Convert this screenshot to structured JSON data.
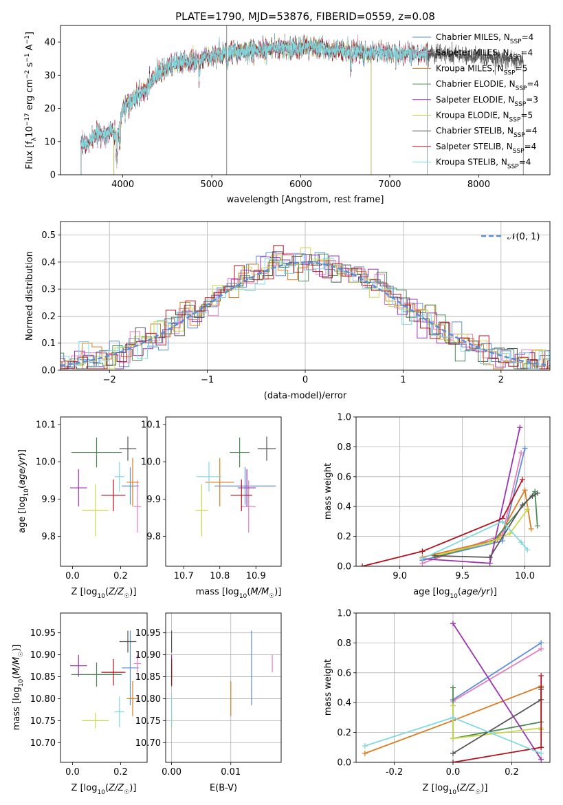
{
  "chart_data": [
    {
      "id": "spectrum",
      "type": "line",
      "title": "PLATE=1790, MJD=53876, FIBERID=0559, z=0.08",
      "xlabel": "wavelength [Angstrom, rest frame]",
      "ylabel": "Flux [f_λ 10^-17 erg cm^-2 s^-1 A^-1]",
      "xlim": [
        3300,
        8800
      ],
      "ylim": [
        0,
        45
      ],
      "xticks": [
        4000,
        5000,
        6000,
        7000,
        8000
      ],
      "yticks": [
        0,
        10,
        20,
        30,
        40
      ],
      "grid": false,
      "legend_placement": "top-right",
      "spectrum_anchors": {
        "x": [
          3530,
          3600,
          3700,
          3800,
          3900,
          3950,
          4000,
          4100,
          4200,
          4300,
          4400,
          4500,
          4600,
          4700,
          4800,
          4900,
          5000,
          5200,
          5500,
          5800,
          6100,
          6400,
          6700,
          7000,
          7300,
          7600,
          8000,
          8300,
          8500
        ],
        "y": [
          10,
          9,
          12,
          12.5,
          13,
          11,
          20,
          22,
          24.5,
          27,
          30.5,
          32,
          33.5,
          34.5,
          34,
          35.5,
          36,
          37,
          37.5,
          38,
          38.5,
          37.5,
          37,
          36.5,
          36.5,
          36.5,
          35.5,
          35,
          34.5
        ]
      },
      "series": [
        {
          "name": "Chabrier MILES, N_SSP=4",
          "color": "#5b8ed6",
          "range": [
            3530,
            7420
          ]
        },
        {
          "name": "Salpeter MILES, N_SSP=4",
          "color": "#e57cbf",
          "range": [
            3530,
            7420
          ]
        },
        {
          "name": "Kroupa MILES, N_SSP=5",
          "color": "#dd7a1f",
          "range": [
            3530,
            7420
          ]
        },
        {
          "name": "Chabrier ELODIE, N_SSP=4",
          "color": "#4d8b56",
          "range": [
            3900,
            6790
          ]
        },
        {
          "name": "Salpeter ELODIE, N_SSP=3",
          "color": "#9b33b0",
          "range": [
            3900,
            6790
          ]
        },
        {
          "name": "Kroupa ELODIE, N_SSP=5",
          "color": "#c9d84a",
          "range": [
            3900,
            6790
          ]
        },
        {
          "name": "Chabrier STELIB, N_SSP=4",
          "color": "#555555",
          "range": [
            3530,
            8500
          ]
        },
        {
          "name": "Salpeter STELIB, N_SSP=4",
          "color": "#b3111c",
          "range": [
            3530,
            7420
          ]
        },
        {
          "name": "Kroupa STELIB, N_SSP=4",
          "color": "#7fd8de",
          "range": [
            3530,
            7420
          ]
        }
      ],
      "legend": {
        "base": [
          "Chabrier MILES, N",
          "Salpeter MILES, N",
          "Kroupa MILES, N",
          "Chabrier ELODIE, N",
          "Salpeter ELODIE, N",
          "Kroupa ELODIE, N",
          "Chabrier STELIB, N",
          "Salpeter STELIB, N",
          "Kroupa STELIB, N"
        ],
        "sub": "SSP",
        "counts": [
          "=4",
          "=4",
          "=5",
          "=4",
          "=3",
          "=5",
          "=4",
          "=4",
          "=4"
        ]
      }
    },
    {
      "id": "residuals",
      "type": "histogram",
      "xlabel": "(data-model)/error",
      "ylabel": "Normed distribution",
      "xlim": [
        -2.5,
        2.5
      ],
      "ylim": [
        0,
        0.55
      ],
      "xticks": [
        -2,
        -1,
        0,
        1,
        2
      ],
      "yticks": [
        0.0,
        0.1,
        0.2,
        0.3,
        0.4,
        0.5
      ],
      "grid": true,
      "legend": {
        "label": "N(0, 1)",
        "placement": "top-right"
      },
      "bin_width": 0.1,
      "curve": "normal pdf, mean 0, sigma 1"
    },
    {
      "id": "age-Z",
      "type": "errorbar",
      "xlabel": "Z [log10(Z/Z☉)]",
      "ylabel": "age [log10(age/yr)]",
      "xlim": [
        -0.05,
        0.31
      ],
      "ylim": [
        9.72,
        10.12
      ],
      "xticks": [
        0.0,
        0.2
      ],
      "yticks": [
        9.8,
        9.9,
        10.0,
        10.1
      ],
      "grid": false
    },
    {
      "id": "age-mass",
      "type": "errorbar",
      "xlabel": "mass [log10(M/M☉)]",
      "ylabel": "",
      "xlim": [
        10.65,
        10.97
      ],
      "ylim": [
        9.72,
        10.12
      ],
      "xticks": [
        10.7,
        10.8,
        10.9
      ],
      "yticks": [
        9.8,
        9.9,
        10.0,
        10.1
      ],
      "grid": false
    },
    {
      "id": "weight-age",
      "type": "line",
      "xlabel": "age [log10(age/yr)]",
      "ylabel": "mass weight",
      "xlim": [
        8.65,
        10.2
      ],
      "ylim": [
        0,
        1
      ],
      "xticks": [
        9.0,
        9.5,
        10.0
      ],
      "yticks": [
        0.0,
        0.2,
        0.4,
        0.6,
        0.8,
        1.0
      ],
      "grid": true
    },
    {
      "id": "mass-Z",
      "type": "errorbar",
      "xlabel": "Z [log10(Z/Z☉)]",
      "ylabel": "mass [log10(M/M☉)]",
      "xlim": [
        -0.05,
        0.31
      ],
      "ylim": [
        10.655,
        10.995
      ],
      "xticks": [
        0.0,
        0.2
      ],
      "yticks": [
        10.7,
        10.75,
        10.8,
        10.85,
        10.9,
        10.95
      ],
      "grid": false
    },
    {
      "id": "mass-ebv",
      "type": "errorbar",
      "xlabel": "E(B-V)",
      "ylabel": "",
      "xlim": [
        -0.001,
        0.0185
      ],
      "ylim": [
        10.655,
        10.995
      ],
      "xticks": [
        0.0,
        0.01
      ],
      "yticks": [
        10.7,
        10.75,
        10.8,
        10.85,
        10.9,
        10.95
      ],
      "grid": true
    },
    {
      "id": "weight-Z",
      "type": "line",
      "xlabel": "Z [log10(Z/Z☉)]",
      "ylabel": "mass weight",
      "xlim": [
        -0.33,
        0.33
      ],
      "ylim": [
        0,
        1
      ],
      "xticks": [
        -0.2,
        0.0,
        0.2
      ],
      "yticks": [
        0.0,
        0.2,
        0.4,
        0.6,
        0.8,
        1.0
      ],
      "grid": true
    }
  ],
  "fits": [
    {
      "color": "#5b8ed6",
      "Z": 0.24,
      "Zerr": 0.07,
      "age": 9.935,
      "ageErr": 0.1,
      "mass": 10.87,
      "massErr": 0.17,
      "ebv": 0.0135,
      "ages": [
        9.18,
        9.82,
        10.0
      ],
      "agew": [
        0.04,
        0.17,
        0.79
      ],
      "Zs": [
        0.0,
        0.3
      ],
      "Zw": [
        0.42,
        0.8
      ]
    },
    {
      "color": "#e57cbf",
      "Z": 0.27,
      "Zerr": 0.03,
      "age": 9.88,
      "ageErr": 0.14,
      "mass": 10.88,
      "massErr": 0.04,
      "ebv": 0.017,
      "ages": [
        9.18,
        9.82,
        9.97
      ],
      "agew": [
        0.02,
        0.21,
        0.76
      ],
      "Zs": [
        0.0,
        0.3
      ],
      "Zw": [
        0.41,
        0.76
      ]
    },
    {
      "color": "#dd7a1f",
      "Z": 0.25,
      "Zerr": 0.05,
      "age": 9.945,
      "ageErr": 0.13,
      "mass": 10.8,
      "massErr": 0.08,
      "ebv": 0.01,
      "ages": [
        9.18,
        9.78,
        10.0,
        10.05
      ],
      "agew": [
        0.06,
        0.18,
        0.51,
        0.25
      ],
      "Zs": [
        -0.3,
        0.0,
        0.3
      ],
      "Zw": [
        0.06,
        0.28,
        0.51
      ]
    },
    {
      "color": "#4d8b56",
      "Z": 0.1,
      "Zerr": 0.21,
      "age": 10.025,
      "ageErr": 0.08,
      "mass": 10.855,
      "massErr": 0.055,
      "ebv": 0.0,
      "ages": [
        9.28,
        9.75,
        10.08,
        10.1
      ],
      "agew": [
        0.06,
        0.17,
        0.5,
        0.27
      ],
      "Zs": [
        0.0,
        0.0,
        0.3,
        0.3
      ],
      "Zw": [
        0.5,
        0.16,
        0.27,
        0.5
      ]
    },
    {
      "color": "#9b33b0",
      "Z": 0.025,
      "Zerr": 0.07,
      "age": 9.93,
      "ageErr": 0.1,
      "mass": 10.875,
      "massErr": 0.05,
      "ebv": 0.0,
      "ages": [
        9.18,
        9.72,
        9.96
      ],
      "agew": [
        0.05,
        0.02,
        0.93
      ],
      "Zs": [
        0.0,
        0.3
      ],
      "Zw": [
        0.93,
        0.02
      ]
    },
    {
      "color": "#c9d84a",
      "Z": 0.095,
      "Zerr": 0.11,
      "age": 9.87,
      "ageErr": 0.14,
      "mass": 10.75,
      "massErr": 0.035,
      "ebv": 0.0,
      "ages": [
        9.28,
        9.72,
        9.88,
        10.02
      ],
      "agew": [
        0.07,
        0.16,
        0.22,
        0.38
      ],
      "Zs": [
        0.0,
        0.0,
        0.3,
        0.3
      ],
      "Zw": [
        0.38,
        0.16,
        0.23,
        0.22
      ]
    },
    {
      "color": "#555555",
      "Z": 0.23,
      "Zerr": 0.07,
      "age": 10.035,
      "ageErr": 0.065,
      "mass": 10.93,
      "massErr": 0.05,
      "ebv": 0.0,
      "ages": [
        9.28,
        9.72,
        9.98,
        10.06,
        10.1
      ],
      "agew": [
        0.07,
        0.06,
        0.41,
        0.47,
        0.49
      ],
      "Zs": [
        0.0,
        0.3,
        0.3
      ],
      "Zw": [
        0.06,
        0.42,
        0.49
      ]
    },
    {
      "color": "#b3111c",
      "Z": 0.17,
      "Zerr": 0.1,
      "age": 9.91,
      "ageErr": 0.085,
      "mass": 10.86,
      "massErr": 0.06,
      "ebv": 0.0,
      "ages": [
        8.7,
        9.18,
        9.82,
        9.98
      ],
      "agew": [
        0.0,
        0.1,
        0.32,
        0.58
      ],
      "Zs": [
        0.0,
        0.3,
        0.3
      ],
      "Zw": [
        0.0,
        0.1,
        0.58
      ]
    },
    {
      "color": "#7fd8de",
      "Z": 0.195,
      "Zerr": 0.04,
      "age": 9.96,
      "ageErr": 0.08,
      "mass": 10.77,
      "massErr": 0.07,
      "ebv": 0.0,
      "ages": [
        9.18,
        9.82,
        9.97,
        10.02
      ],
      "agew": [
        0.05,
        0.3,
        0.16,
        0.11
      ],
      "Zs": [
        -0.3,
        0.0,
        0.3
      ],
      "Zw": [
        0.11,
        0.3,
        0.06
      ]
    }
  ]
}
